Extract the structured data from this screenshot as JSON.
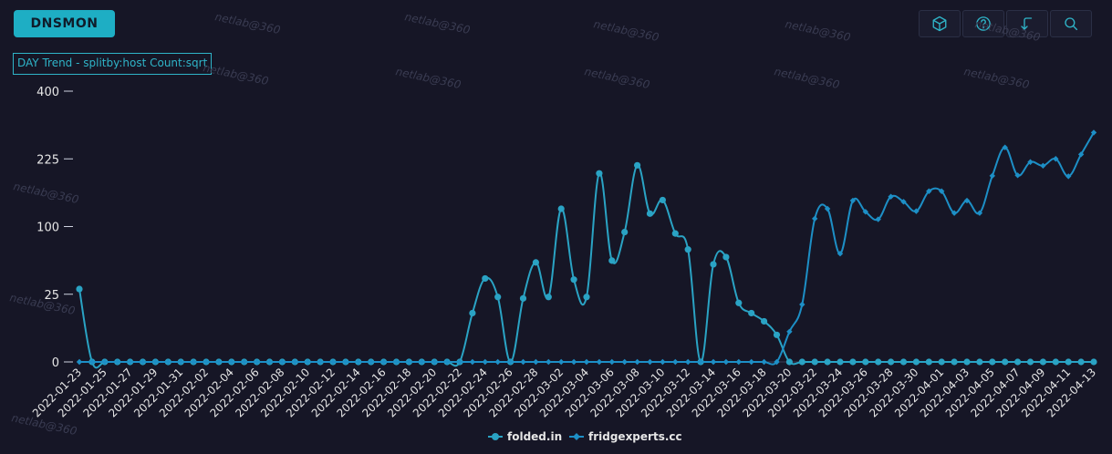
{
  "app": {
    "title": "DNSMON"
  },
  "toolbar": {
    "icons": [
      "cube-icon",
      "help-icon",
      "return-icon",
      "search-icon"
    ]
  },
  "colors": {
    "background": "#161626",
    "accent": "#1eaec4",
    "series1": "#2aa3c4",
    "series2": "#1d8fc6",
    "axis_text": "#e6e6e6"
  },
  "watermark": "netlab@360",
  "chart_data": {
    "type": "line",
    "title": "DAY Trend - splitby:host Count:sqrt",
    "y_scale": "sqrt",
    "ylim": [
      0,
      400
    ],
    "yticks": [
      400,
      225,
      100,
      25,
      0
    ],
    "x": [
      "2022-01-23",
      "2022-01-24",
      "2022-01-25",
      "2022-01-26",
      "2022-01-27",
      "2022-01-28",
      "2022-01-29",
      "2022-01-30",
      "2022-01-31",
      "2022-02-01",
      "2022-02-02",
      "2022-02-03",
      "2022-02-04",
      "2022-02-05",
      "2022-02-06",
      "2022-02-07",
      "2022-02-08",
      "2022-02-09",
      "2022-02-10",
      "2022-02-11",
      "2022-02-12",
      "2022-02-13",
      "2022-02-14",
      "2022-02-15",
      "2022-02-16",
      "2022-02-17",
      "2022-02-18",
      "2022-02-19",
      "2022-02-20",
      "2022-02-21",
      "2022-02-22",
      "2022-02-23",
      "2022-02-24",
      "2022-02-25",
      "2022-02-26",
      "2022-02-27",
      "2022-02-28",
      "2022-03-01",
      "2022-03-02",
      "2022-03-03",
      "2022-03-04",
      "2022-03-05",
      "2022-03-06",
      "2022-03-07",
      "2022-03-08",
      "2022-03-09",
      "2022-03-10",
      "2022-03-11",
      "2022-03-12",
      "2022-03-13",
      "2022-03-14",
      "2022-03-15",
      "2022-03-16",
      "2022-03-17",
      "2022-03-18",
      "2022-03-19",
      "2022-03-20",
      "2022-03-21",
      "2022-03-22",
      "2022-03-23",
      "2022-03-24",
      "2022-03-25",
      "2022-03-26",
      "2022-03-27",
      "2022-03-28",
      "2022-03-29",
      "2022-03-30",
      "2022-03-31",
      "2022-04-01",
      "2022-04-02",
      "2022-04-03",
      "2022-04-04",
      "2022-04-05",
      "2022-04-06",
      "2022-04-07",
      "2022-04-08",
      "2022-04-09",
      "2022-04-10",
      "2022-04-11",
      "2022-04-12",
      "2022-04-13"
    ],
    "xtick_labels": [
      "2022-01-23",
      "2022-01-25",
      "2022-01-27",
      "2022-01-29",
      "2022-01-31",
      "2022-02-02",
      "2022-02-04",
      "2022-02-06",
      "2022-02-08",
      "2022-02-10",
      "2022-02-12",
      "2022-02-14",
      "2022-02-16",
      "2022-02-18",
      "2022-02-20",
      "2022-02-22",
      "2022-02-24",
      "2022-02-26",
      "2022-02-28",
      "2022-03-02",
      "2022-03-04",
      "2022-03-06",
      "2022-03-08",
      "2022-03-10",
      "2022-03-12",
      "2022-03-14",
      "2022-03-16",
      "2022-03-18",
      "2022-03-20",
      "2022-03-22",
      "2022-03-24",
      "2022-03-26",
      "2022-03-28",
      "2022-03-30",
      "2022-04-01",
      "2022-04-03",
      "2022-04-05",
      "2022-04-07",
      "2022-04-09",
      "2022-04-11",
      "2022-04-13"
    ],
    "series": [
      {
        "name": "folded.in",
        "marker": "circle",
        "values": [
          29,
          0,
          0,
          0,
          0,
          0,
          0,
          0,
          0,
          0,
          0,
          0,
          0,
          0,
          0,
          0,
          0,
          0,
          0,
          0,
          0,
          0,
          0,
          0,
          0,
          0,
          0,
          0,
          0,
          0,
          0,
          13,
          38,
          23,
          0,
          22,
          54,
          23,
          128,
          37,
          23,
          194,
          56,
          92,
          211,
          120,
          143,
          90,
          69,
          0,
          52,
          60,
          19,
          13,
          9,
          4,
          0,
          0,
          0,
          0,
          0,
          0,
          0,
          0,
          0,
          0,
          0,
          0,
          0,
          0,
          0,
          0,
          0,
          0,
          0,
          0,
          0,
          0,
          0,
          0,
          0
        ]
      },
      {
        "name": "fridgexperts.cc",
        "marker": "diamond",
        "values": [
          0,
          0,
          0,
          0,
          0,
          0,
          0,
          0,
          0,
          0,
          0,
          0,
          0,
          0,
          0,
          0,
          0,
          0,
          0,
          0,
          0,
          0,
          0,
          0,
          0,
          0,
          0,
          0,
          0,
          0,
          0,
          0,
          0,
          0,
          0,
          0,
          0,
          0,
          0,
          0,
          0,
          0,
          0,
          0,
          0,
          0,
          0,
          0,
          0,
          0,
          0,
          0,
          0,
          0,
          0,
          0,
          5,
          18,
          112,
          128,
          64,
          142,
          123,
          111,
          149,
          140,
          124,
          159,
          159,
          121,
          142,
          121,
          189,
          251,
          190,
          218,
          210,
          225,
          188,
          235,
          287
        ]
      }
    ],
    "legend_position": "bottom-center"
  }
}
